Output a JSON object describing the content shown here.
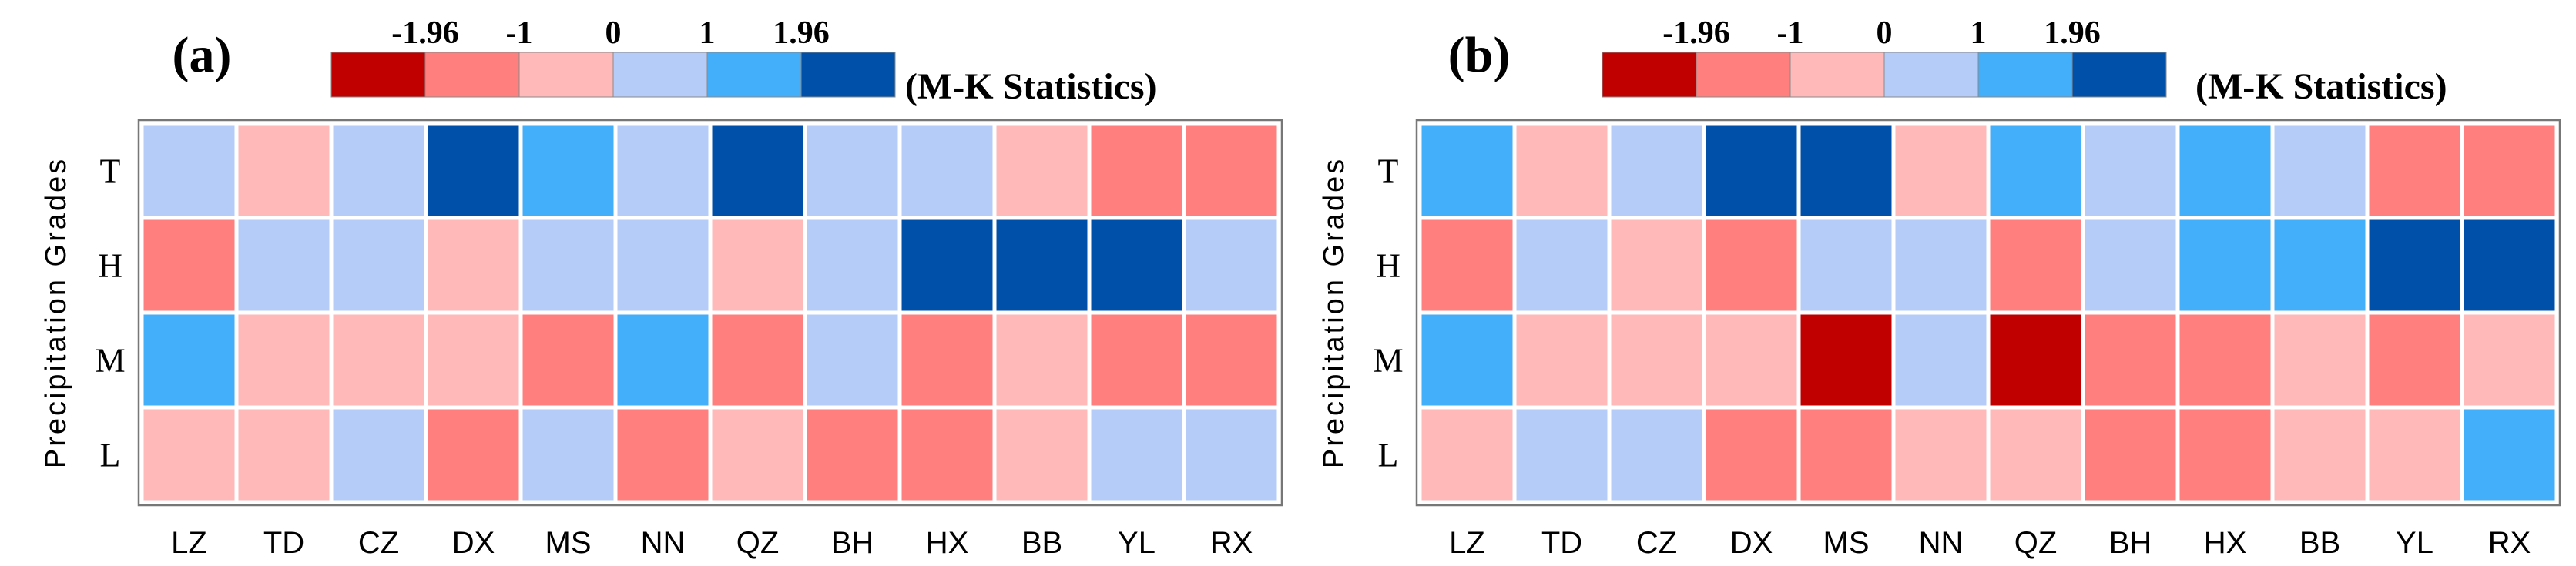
{
  "colorbar": {
    "tick_labels": [
      "-1.96",
      "-1",
      "0",
      "1",
      "1.96"
    ],
    "title": "(M-K Statistics)",
    "classes": [
      {
        "range": "< -1.96",
        "color": "#C00000"
      },
      {
        "range": "-1.96 to -1",
        "color": "#FF7F7F"
      },
      {
        "range": "-1 to 0",
        "color": "#FFB9B9"
      },
      {
        "range": "0 to 1",
        "color": "#B6CCF8"
      },
      {
        "range": "1 to 1.96",
        "color": "#43AEFA"
      },
      {
        "range": "> 1.96",
        "color": "#0050AA"
      }
    ]
  },
  "chart_data": [
    {
      "type": "heatmap",
      "panel_label": "(a)",
      "ylabel": "Precipitation Grades",
      "xlabel": "",
      "x_categories": [
        "LZ",
        "TD",
        "CZ",
        "DX",
        "MS",
        "NN",
        "QZ",
        "BH",
        "HX",
        "BB",
        "YL",
        "RX"
      ],
      "y_categories": [
        "T",
        "H",
        "M",
        "L"
      ],
      "value_classes_note": "0:<-1.96, 1:[-1.96,-1), 2:[-1,0), 3:[0,1), 4:[1,1.96), 5:>1.96",
      "values": [
        [
          3,
          2,
          3,
          5,
          4,
          3,
          5,
          3,
          3,
          2,
          1,
          1
        ],
        [
          1,
          3,
          3,
          2,
          3,
          3,
          2,
          3,
          5,
          5,
          5,
          3
        ],
        [
          4,
          2,
          2,
          2,
          1,
          4,
          1,
          3,
          1,
          2,
          1,
          1
        ],
        [
          2,
          2,
          3,
          1,
          3,
          1,
          2,
          1,
          1,
          2,
          3,
          3
        ]
      ]
    },
    {
      "type": "heatmap",
      "panel_label": "(b)",
      "ylabel": "Precipitation Grades",
      "xlabel": "",
      "x_categories": [
        "LZ",
        "TD",
        "CZ",
        "DX",
        "MS",
        "NN",
        "QZ",
        "BH",
        "HX",
        "BB",
        "YL",
        "RX"
      ],
      "y_categories": [
        "T",
        "H",
        "M",
        "L"
      ],
      "value_classes_note": "0:<-1.96, 1:[-1.96,-1), 2:[-1,0), 3:[0,1), 4:[1,1.96), 5:>1.96",
      "values": [
        [
          4,
          2,
          3,
          5,
          5,
          2,
          4,
          3,
          4,
          3,
          1,
          1
        ],
        [
          1,
          3,
          2,
          1,
          3,
          3,
          1,
          3,
          4,
          4,
          5,
          5
        ],
        [
          4,
          2,
          2,
          2,
          0,
          3,
          0,
          1,
          1,
          2,
          1,
          2
        ],
        [
          2,
          3,
          3,
          1,
          1,
          2,
          2,
          1,
          1,
          2,
          2,
          4
        ]
      ]
    }
  ]
}
